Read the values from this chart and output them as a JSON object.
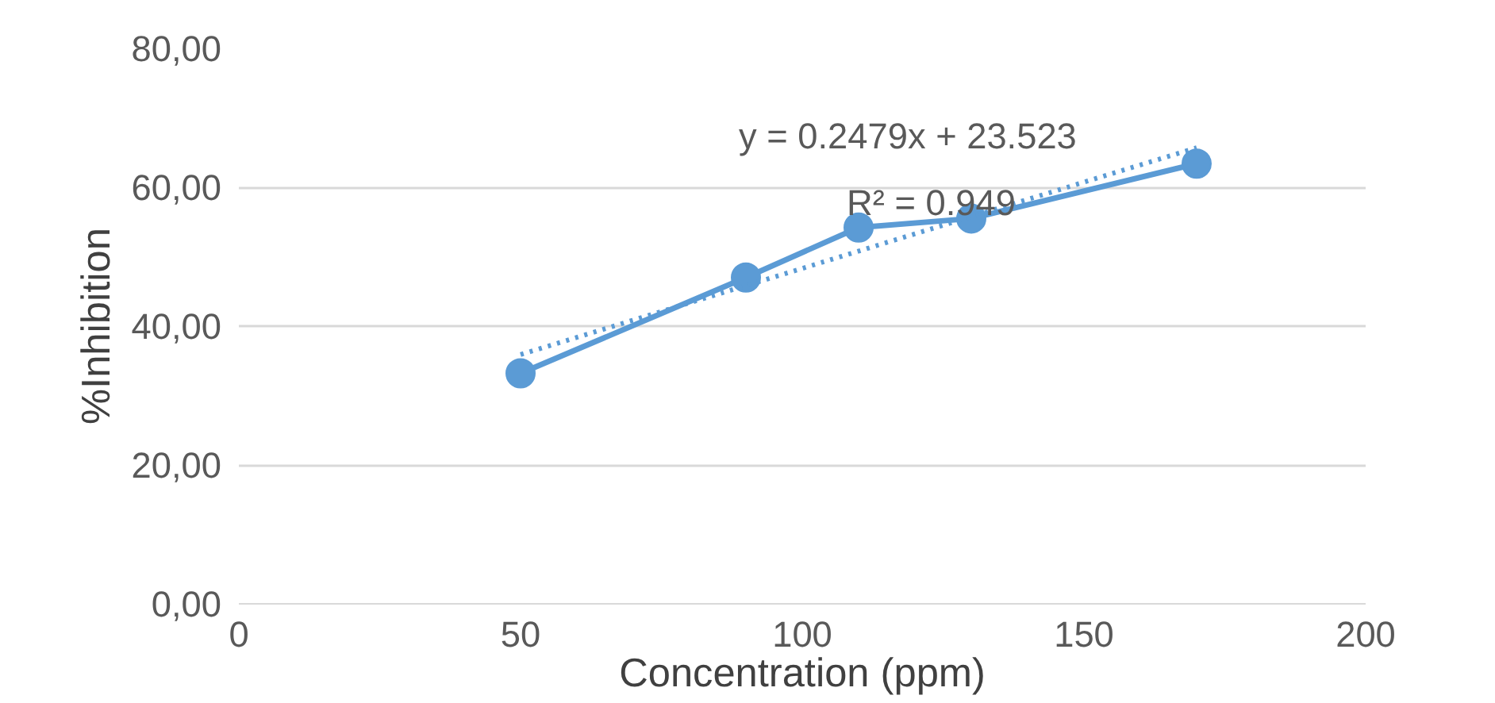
{
  "chart_data": {
    "type": "line",
    "xlabel": "Concentration (ppm)",
    "ylabel": "%Inhibition",
    "xlim": [
      0,
      200
    ],
    "xticks": [
      0,
      50,
      100,
      150,
      200
    ],
    "ylim": [
      0,
      80
    ],
    "yticks": [
      {
        "value": 0,
        "label": "0,00"
      },
      {
        "value": 20,
        "label": "20,00"
      },
      {
        "value": 40,
        "label": "40,00"
      },
      {
        "value": 60,
        "label": "60,00"
      },
      {
        "value": 80,
        "label": "80,00"
      }
    ],
    "grid": "y",
    "series": [
      {
        "color": "#5b9bd5",
        "x": [
          50,
          90,
          110,
          130,
          170
        ],
        "values": [
          33.2,
          47.0,
          54.2,
          55.5,
          63.4
        ],
        "marker": "circle",
        "line_style": "solid"
      },
      {
        "color": "#5b9bd5",
        "x": [
          50,
          170
        ],
        "values": [
          35.9,
          65.7
        ],
        "marker": "none",
        "line_style": "dotted"
      }
    ],
    "annotations": [
      "y = 0.2479x + 23.523",
      "R² = 0.949"
    ]
  }
}
